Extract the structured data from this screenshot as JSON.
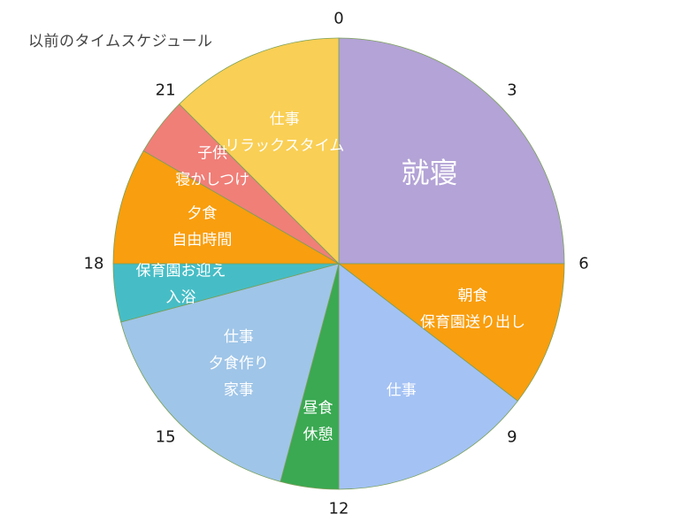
{
  "chart_data": {
    "type": "pie",
    "title": "以前のタイムスケジュール",
    "clock_labels": [
      "0",
      "3",
      "6",
      "9",
      "12",
      "15",
      "18",
      "21"
    ],
    "slices": [
      {
        "label": [
          "就寝"
        ],
        "start_hour": 0,
        "end_hour": 6,
        "color": "#B3A3D6"
      },
      {
        "label": [
          "朝食",
          "保育園送り出し"
        ],
        "start_hour": 6,
        "end_hour": 8.5,
        "color": "#F99E0E"
      },
      {
        "label": [
          "仕事"
        ],
        "start_hour": 8.5,
        "end_hour": 12,
        "color": "#A4C2F4"
      },
      {
        "label": [
          "昼食",
          "休憩"
        ],
        "start_hour": 12,
        "end_hour": 13,
        "color": "#3AA952"
      },
      {
        "label": [
          "仕事",
          "夕食作り",
          "家事"
        ],
        "start_hour": 13,
        "end_hour": 17,
        "color": "#9FC5E8"
      },
      {
        "label": [
          "保育園お迎え",
          "入浴"
        ],
        "start_hour": 17,
        "end_hour": 18,
        "color": "#46BDC6"
      },
      {
        "label": [
          "夕食",
          "自由時間"
        ],
        "start_hour": 18,
        "end_hour": 20,
        "color": "#F99E0E"
      },
      {
        "label": [
          "子供",
          "寝かしつけ"
        ],
        "start_hour": 20,
        "end_hour": 21,
        "color": "#F07F78"
      },
      {
        "label": [
          "仕事",
          "リラックスタイム"
        ],
        "start_hour": 21,
        "end_hour": 24,
        "color": "#F9CF55"
      }
    ]
  }
}
